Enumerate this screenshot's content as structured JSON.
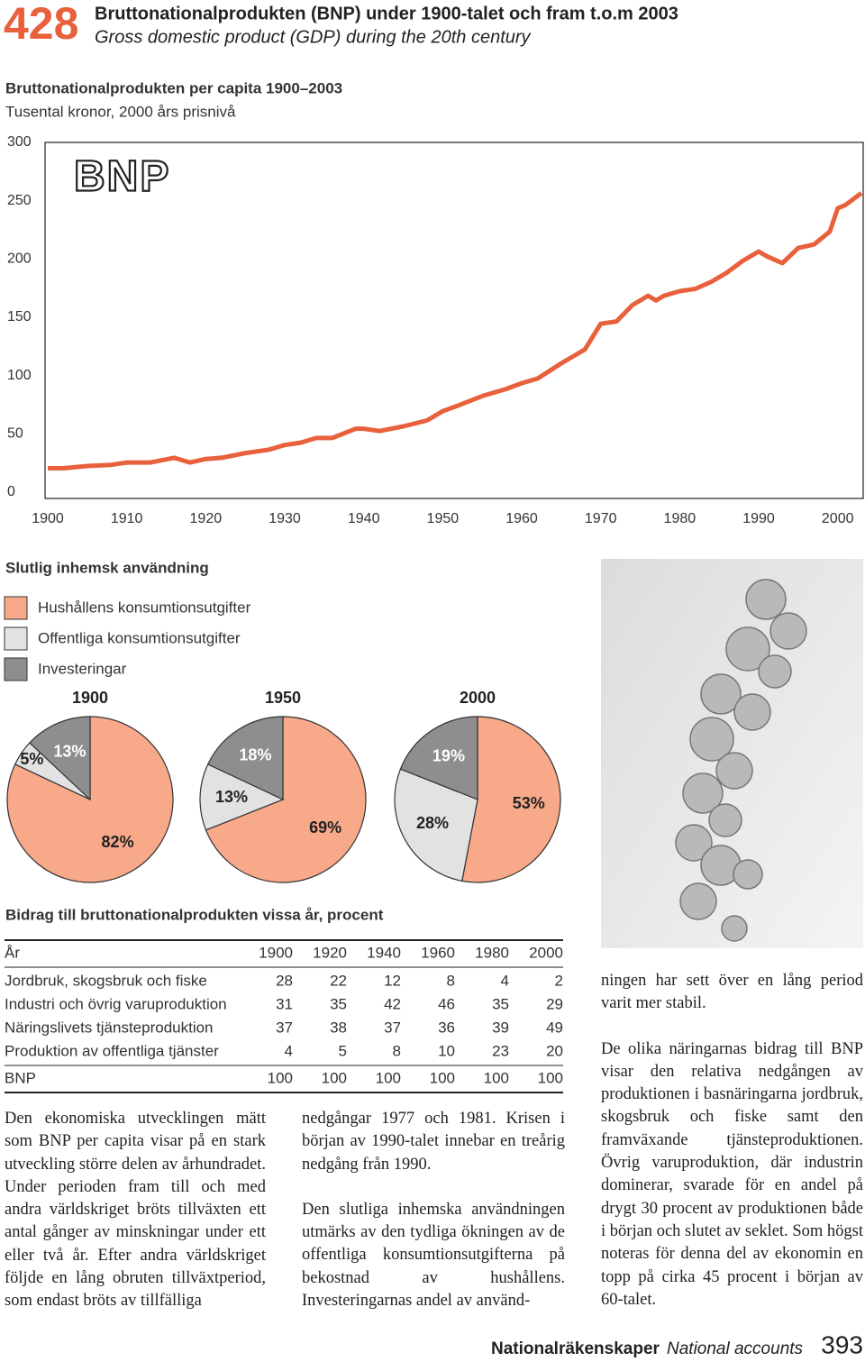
{
  "header": {
    "page_number": "428",
    "title": "Bruttonationalprodukten (BNP) under 1900-talet och fram t.o.m 2003",
    "subtitle": "Gross domestic product (GDP) during the 20th century"
  },
  "chart_data": [
    {
      "type": "line",
      "title": "Bruttonationalprodukten per capita 1900–2003",
      "subtitle": "Tusental kronor, 2000 års prisnivå",
      "logo": "BNP",
      "x": [
        1900,
        1902,
        1905,
        1908,
        1910,
        1913,
        1916,
        1917,
        1918,
        1920,
        1922,
        1925,
        1928,
        1930,
        1932,
        1934,
        1936,
        1939,
        1940,
        1942,
        1945,
        1948,
        1950,
        1952,
        1955,
        1958,
        1960,
        1962,
        1965,
        1968,
        1970,
        1972,
        1974,
        1976,
        1977,
        1978,
        1980,
        1982,
        1984,
        1986,
        1988,
        1990,
        1991,
        1993,
        1995,
        1997,
        1999,
        2000,
        2001,
        2003
      ],
      "series": [
        {
          "color": "#e8603c",
          "values": [
            22,
            22,
            24,
            25,
            27,
            27,
            31,
            29,
            27,
            30,
            31,
            35,
            38,
            42,
            44,
            48,
            48,
            56,
            56,
            54,
            58,
            63,
            71,
            76,
            84,
            90,
            95,
            99,
            112,
            124,
            146,
            148,
            162,
            170,
            166,
            170,
            174,
            176,
            182,
            190,
            200,
            208,
            204,
            198,
            211,
            214,
            225,
            245,
            248,
            258
          ]
        }
      ],
      "xlim": [
        1900,
        2003
      ],
      "xticks": [
        1900,
        1910,
        1920,
        1930,
        1940,
        1950,
        1960,
        1970,
        1980,
        1990,
        2000
      ],
      "ylim": [
        0,
        300
      ],
      "yticks": [
        0,
        50,
        100,
        150,
        200,
        250,
        300
      ],
      "grid": false
    },
    {
      "type": "pie",
      "title": "Slutlig inhemsk användning",
      "categories": [
        "Hushållens konsumtionsutgifter",
        "Offentliga konsumtionsutgifter",
        "Investeringar"
      ],
      "colors": [
        "#f7a98a",
        "#e2e2e2",
        "#8e8e90"
      ],
      "series": [
        {
          "name": "1900",
          "values": [
            82,
            5,
            13
          ],
          "value_labels": [
            "82%",
            "5%",
            "13%"
          ]
        },
        {
          "name": "1950",
          "values": [
            69,
            13,
            18
          ],
          "value_labels": [
            "69%",
            "13%",
            "18%"
          ]
        },
        {
          "name": "2000",
          "values": [
            53,
            28,
            19
          ],
          "value_labels": [
            "53%",
            "28%",
            "19%"
          ]
        }
      ]
    }
  ],
  "table": {
    "title": "Bidrag till bruttonationalprodukten vissa år, procent",
    "header": [
      "År",
      1900,
      1920,
      1940,
      1960,
      1980,
      2000
    ],
    "rows": [
      [
        "Jordbruk, skogsbruk och fiske",
        28,
        22,
        12,
        8,
        4,
        2
      ],
      [
        "Industri och övrig varuproduktion",
        31,
        35,
        42,
        46,
        35,
        29
      ],
      [
        "Näringslivets tjänsteproduktion",
        37,
        38,
        37,
        36,
        39,
        49
      ],
      [
        "Produktion av offentliga tjänster",
        4,
        5,
        8,
        10,
        23,
        20
      ],
      [
        "BNP",
        100,
        100,
        100,
        100,
        100,
        100
      ]
    ]
  },
  "text": {
    "columns": [
      [
        "Den ekonomiska utvecklingen mätt som BNP per capita visar på en stark utveckling större delen av århundradet. Under perioden fram till och med andra världskriget bröts tillväxten ett antal gånger av minskningar under ett eller två år. Efter andra världskriget följde en lång obruten tillväxtperiod, som endast bröts av tillfälliga"
      ],
      [
        "nedgångar 1977 och 1981. Krisen i början av 1990-talet innebar en treårig nedgång från 1990.",
        "Den slutliga inhemska användningen utmärks av den tydliga ökningen av de offentliga konsumtionsutgifterna på bekostnad av hushållens. Investeringarnas andel av använd-"
      ],
      [
        "ningen har sett över en lång period varit mer stabil.",
        "De olika näringarnas bidrag till BNP visar den relativa nedgången av produktionen i basnäringarna jordbruk, skogsbruk och fiske samt den framväxande tjänsteproduktionen. Övrig varuproduktion, där industrin dominerar, svarade för en andel på drygt 30 procent av produktionen både i början och slutet av seklet. Som högst noteras för denna del av ekonomin en topp på cirka 45 procent i början av 60-talet."
      ]
    ]
  },
  "footer": {
    "section": "Nationalräkenskaper",
    "section_en": "National accounts",
    "page_number": "393"
  }
}
